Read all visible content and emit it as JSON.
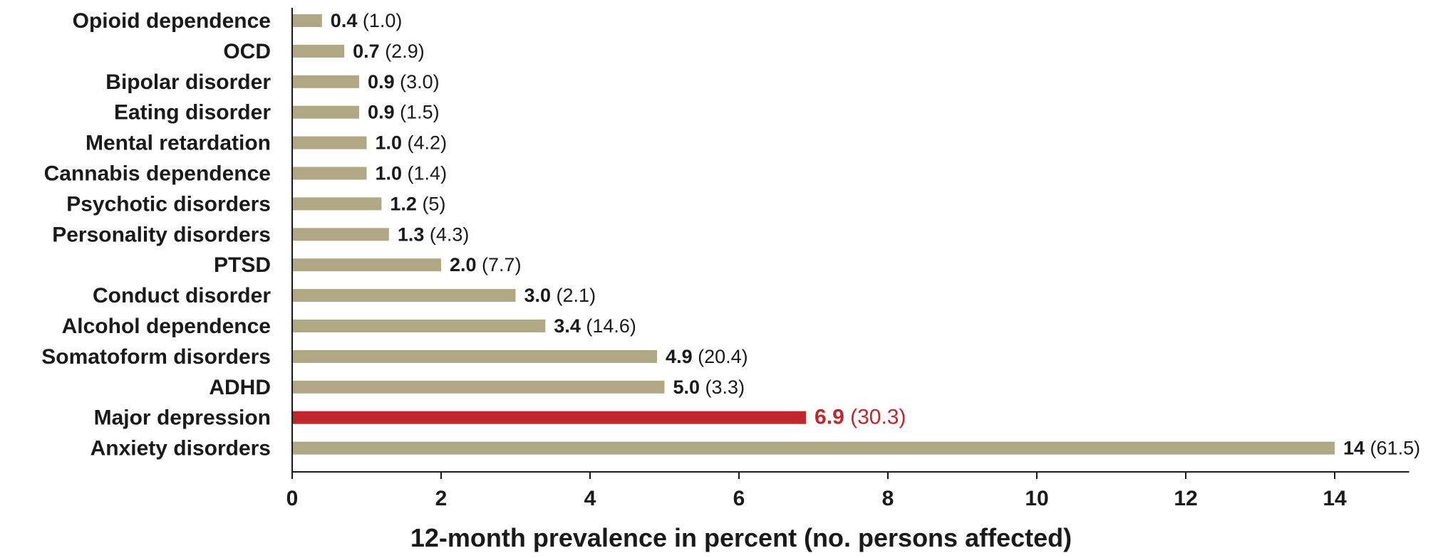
{
  "chart_data": {
    "type": "bar",
    "orientation": "horizontal",
    "title": "",
    "xlabel": "12-month prevalence in percent (no. persons affected)",
    "ylabel": "",
    "xlim": [
      0,
      15
    ],
    "xticks": [
      0,
      2,
      4,
      6,
      8,
      10,
      12,
      14
    ],
    "grid": false,
    "colors": {
      "default": "#b0a885",
      "highlight": "#c0262b"
    },
    "bars": [
      {
        "category": "Opioid dependence",
        "value": 0.4,
        "value_label": "0.4",
        "count_label": "(1.0)",
        "highlight": false
      },
      {
        "category": "OCD",
        "value": 0.7,
        "value_label": "0.7",
        "count_label": "(2.9)",
        "highlight": false
      },
      {
        "category": "Bipolar disorder",
        "value": 0.9,
        "value_label": "0.9",
        "count_label": "(3.0)",
        "highlight": false
      },
      {
        "category": "Eating disorder",
        "value": 0.9,
        "value_label": "0.9",
        "count_label": "(1.5)",
        "highlight": false
      },
      {
        "category": "Mental retardation",
        "value": 1.0,
        "value_label": "1.0",
        "count_label": "(4.2)",
        "highlight": false
      },
      {
        "category": "Cannabis dependence",
        "value": 1.0,
        "value_label": "1.0",
        "count_label": "(1.4)",
        "highlight": false
      },
      {
        "category": "Psychotic disorders",
        "value": 1.2,
        "value_label": "1.2",
        "count_label": "(5)",
        "highlight": false
      },
      {
        "category": "Personality disorders",
        "value": 1.3,
        "value_label": "1.3",
        "count_label": "(4.3)",
        "highlight": false
      },
      {
        "category": "PTSD",
        "value": 2.0,
        "value_label": "2.0",
        "count_label": "(7.7)",
        "highlight": false
      },
      {
        "category": "Conduct disorder",
        "value": 3.0,
        "value_label": "3.0",
        "count_label": "(2.1)",
        "highlight": false
      },
      {
        "category": "Alcohol dependence",
        "value": 3.4,
        "value_label": "3.4",
        "count_label": "(14.6)",
        "highlight": false
      },
      {
        "category": "Somatoform disorders",
        "value": 4.9,
        "value_label": "4.9",
        "count_label": "(20.4)",
        "highlight": false
      },
      {
        "category": "ADHD",
        "value": 5.0,
        "value_label": "5.0",
        "count_label": "(3.3)",
        "highlight": false
      },
      {
        "category": "Major depression",
        "value": 6.9,
        "value_label": "6.9",
        "count_label": "(30.3)",
        "highlight": true
      },
      {
        "category": "Anxiety disorders",
        "value": 14,
        "value_label": "14",
        "count_label": "(61.5)",
        "highlight": false
      }
    ]
  }
}
